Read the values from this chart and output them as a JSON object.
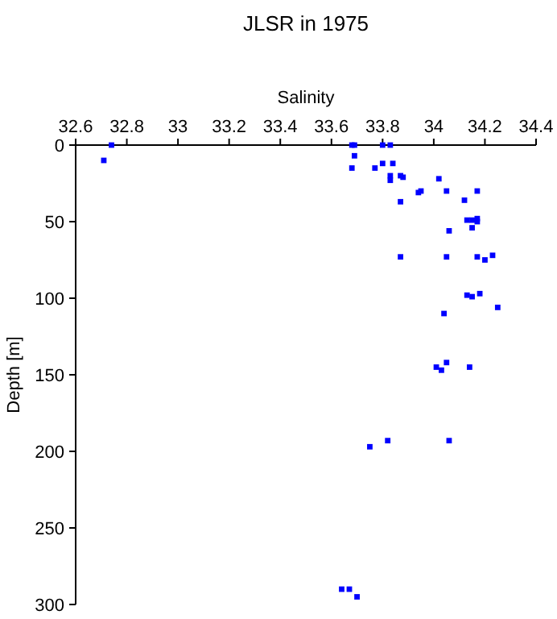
{
  "chart_data": {
    "type": "scatter",
    "title": "JLSR in 1975",
    "xlabel": "Salinity",
    "ylabel": "Depth [m]",
    "xlim": [
      32.6,
      34.4
    ],
    "xticks": [
      32.6,
      32.8,
      33,
      33.2,
      33.4,
      33.6,
      33.8,
      34,
      34.2,
      34.4
    ],
    "ylim": [
      300,
      0
    ],
    "yticks": [
      0,
      50,
      100,
      150,
      200,
      250,
      300
    ],
    "marker": "square",
    "grid": false,
    "series": [
      {
        "color": "#0000ff",
        "x": [
          32.74,
          32.71,
          33.68,
          33.69,
          33.69,
          33.68,
          33.8,
          33.83,
          33.8,
          33.77,
          33.84,
          33.83,
          33.83,
          33.87,
          33.88,
          33.87,
          33.94,
          33.95,
          34.02,
          34.05,
          34.12,
          34.17,
          34.13,
          34.15,
          34.17,
          34.17,
          34.15,
          34.06,
          33.87,
          34.05,
          34.17,
          34.2,
          34.23,
          34.13,
          34.15,
          34.18,
          34.04,
          34.25,
          34.05,
          34.01,
          34.03,
          34.14,
          34.06,
          33.75,
          33.82,
          33.64,
          33.67,
          33.7
        ],
        "values": [
          0,
          10,
          0,
          0,
          7,
          15,
          0,
          0,
          12,
          15,
          12,
          20,
          23,
          20,
          21,
          37,
          31,
          30,
          22,
          30,
          36,
          30,
          49,
          49,
          48,
          50,
          54,
          56,
          73,
          73,
          73,
          75,
          72,
          98,
          99,
          97,
          110,
          106,
          142,
          145,
          147,
          145,
          193,
          197,
          193,
          290,
          290,
          295
        ]
      }
    ]
  }
}
